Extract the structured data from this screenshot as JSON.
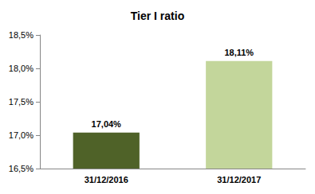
{
  "chart_data": {
    "type": "bar",
    "title": "Tier I ratio",
    "categories": [
      "31/12/2016",
      "31/12/2017"
    ],
    "values": [
      17.04,
      18.11
    ],
    "value_labels": [
      "17,04%",
      "18,11%"
    ],
    "colors": [
      "#4f6228",
      "#c3d69b"
    ],
    "ylim": [
      16.5,
      18.5
    ],
    "yticks": [
      {
        "value": 16.5,
        "label": "16,5%"
      },
      {
        "value": 17.0,
        "label": "17,0%"
      },
      {
        "value": 17.5,
        "label": "17,5%"
      },
      {
        "value": 18.0,
        "label": "18,0%"
      },
      {
        "value": 18.5,
        "label": "18,5%"
      }
    ],
    "grid": false,
    "data_labels": true
  }
}
